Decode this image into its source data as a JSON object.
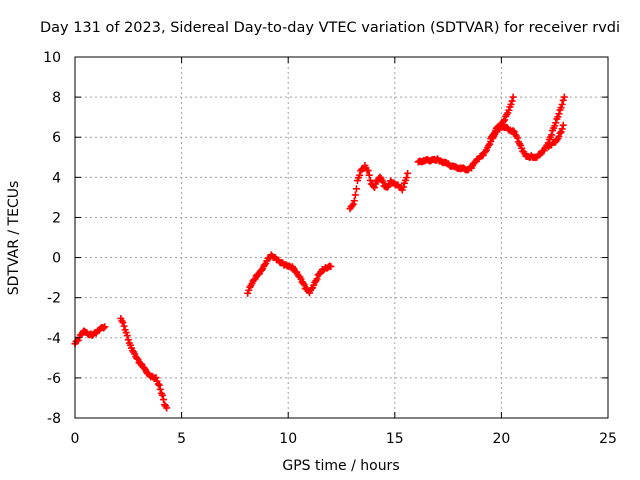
{
  "chart_data": {
    "type": "scatter",
    "title": "Day 131 of 2023, Sidereal Day-to-day VTEC variation (SDTVAR) for receiver rvdi",
    "xlabel": "GPS time / hours",
    "ylabel": "SDTVAR / TECUs",
    "xlim": [
      0,
      25
    ],
    "ylim": [
      -8,
      10
    ],
    "xticks": [
      0,
      5,
      10,
      15,
      20,
      25
    ],
    "yticks": [
      -8,
      -6,
      -4,
      -2,
      0,
      2,
      4,
      6,
      8,
      10
    ],
    "grid": true,
    "marker": "plus",
    "color": "#ff0000",
    "series": [
      {
        "name": "SDTVAR",
        "segments": [
          [
            [
              0.0,
              -4.3
            ],
            [
              0.15,
              -4.1
            ],
            [
              0.3,
              -3.8
            ],
            [
              0.45,
              -3.65
            ],
            [
              0.6,
              -3.8
            ],
            [
              0.8,
              -3.85
            ],
            [
              1.0,
              -3.75
            ],
            [
              1.2,
              -3.55
            ],
            [
              1.4,
              -3.45
            ]
          ],
          [
            [
              2.15,
              -3.0
            ],
            [
              2.3,
              -3.4
            ],
            [
              2.45,
              -3.9
            ],
            [
              2.6,
              -4.4
            ],
            [
              2.8,
              -4.8
            ],
            [
              3.0,
              -5.2
            ],
            [
              3.2,
              -5.45
            ],
            [
              3.4,
              -5.8
            ],
            [
              3.6,
              -5.95
            ],
            [
              3.8,
              -6.0
            ],
            [
              3.95,
              -6.4
            ],
            [
              4.1,
              -6.9
            ],
            [
              4.2,
              -7.3
            ],
            [
              4.3,
              -7.5
            ]
          ],
          [
            [
              8.1,
              -1.75
            ],
            [
              8.3,
              -1.3
            ],
            [
              8.5,
              -0.95
            ],
            [
              8.7,
              -0.7
            ],
            [
              8.9,
              -0.35
            ],
            [
              9.05,
              -0.05
            ],
            [
              9.2,
              0.1
            ],
            [
              9.4,
              0.0
            ],
            [
              9.6,
              -0.2
            ],
            [
              9.8,
              -0.35
            ],
            [
              10.0,
              -0.45
            ],
            [
              10.2,
              -0.5
            ],
            [
              10.4,
              -0.75
            ],
            [
              10.6,
              -1.05
            ],
            [
              10.8,
              -1.5
            ],
            [
              11.0,
              -1.75
            ],
            [
              11.2,
              -1.4
            ],
            [
              11.4,
              -0.9
            ],
            [
              11.6,
              -0.6
            ],
            [
              11.8,
              -0.5
            ],
            [
              12.0,
              -0.45
            ]
          ],
          [
            [
              12.9,
              2.4
            ],
            [
              13.1,
              2.8
            ],
            [
              13.25,
              3.8
            ],
            [
              13.4,
              4.3
            ],
            [
              13.6,
              4.55
            ],
            [
              13.75,
              4.3
            ],
            [
              13.9,
              3.65
            ],
            [
              14.05,
              3.5
            ],
            [
              14.2,
              3.9
            ],
            [
              14.35,
              4.0
            ],
            [
              14.5,
              3.6
            ],
            [
              14.65,
              3.5
            ],
            [
              14.8,
              3.8
            ],
            [
              15.0,
              3.7
            ],
            [
              15.2,
              3.55
            ],
            [
              15.35,
              3.4
            ],
            [
              15.5,
              3.85
            ],
            [
              15.6,
              4.2
            ]
          ],
          [
            [
              16.1,
              4.75
            ],
            [
              16.4,
              4.85
            ],
            [
              16.8,
              4.85
            ],
            [
              17.0,
              4.9
            ],
            [
              17.2,
              4.8
            ],
            [
              17.5,
              4.65
            ],
            [
              17.8,
              4.5
            ],
            [
              18.1,
              4.45
            ],
            [
              18.4,
              4.4
            ],
            [
              18.6,
              4.5
            ],
            [
              18.8,
              4.8
            ],
            [
              19.0,
              5.0
            ],
            [
              19.2,
              5.2
            ],
            [
              19.4,
              5.6
            ],
            [
              19.6,
              6.0
            ],
            [
              19.8,
              6.3
            ],
            [
              20.0,
              6.6
            ],
            [
              20.2,
              7.0
            ],
            [
              20.4,
              7.5
            ],
            [
              20.55,
              8.0
            ]
          ],
          [
            [
              19.5,
              5.9
            ],
            [
              19.8,
              6.5
            ],
            [
              20.1,
              6.55
            ],
            [
              20.4,
              6.35
            ],
            [
              20.6,
              6.3
            ],
            [
              20.8,
              5.8
            ],
            [
              21.0,
              5.3
            ],
            [
              21.2,
              5.0
            ],
            [
              21.4,
              5.05
            ],
            [
              21.6,
              5.0
            ],
            [
              21.8,
              5.15
            ],
            [
              22.0,
              5.35
            ],
            [
              22.2,
              5.7
            ],
            [
              22.4,
              6.3
            ],
            [
              22.6,
              6.9
            ],
            [
              22.8,
              7.5
            ],
            [
              22.95,
              8.0
            ]
          ],
          [
            [
              22.2,
              5.5
            ],
            [
              22.4,
              5.7
            ],
            [
              22.6,
              5.85
            ],
            [
              22.8,
              6.3
            ],
            [
              22.9,
              6.6
            ]
          ]
        ]
      }
    ]
  }
}
